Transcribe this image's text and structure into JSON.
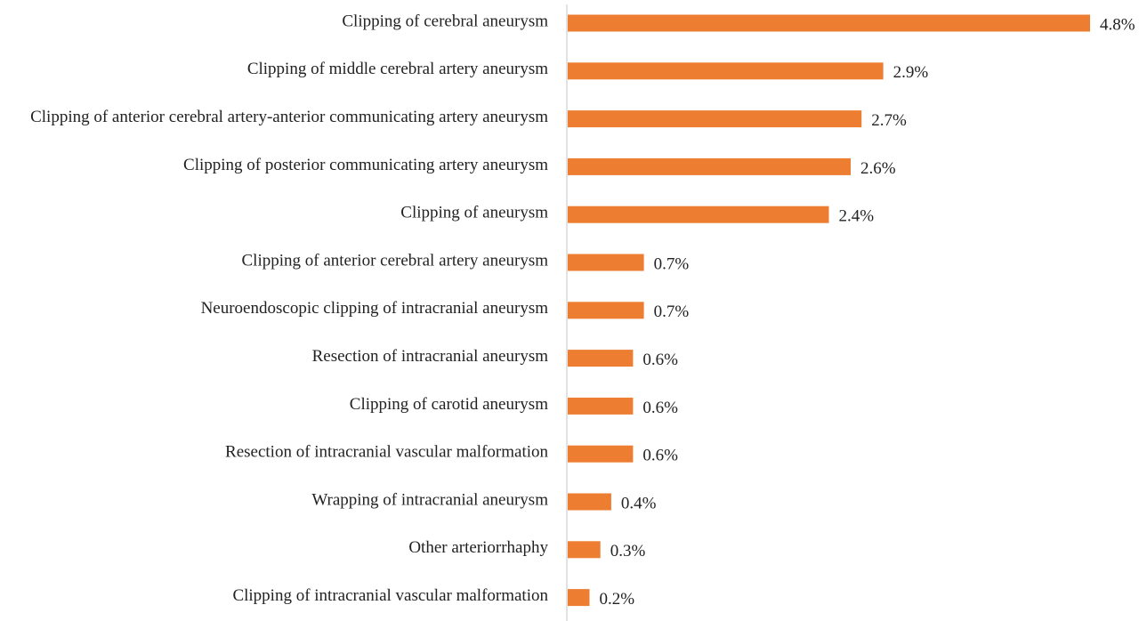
{
  "chart_data": {
    "type": "bar",
    "orientation": "horizontal",
    "categories": [
      "Clipping of cerebral aneurysm",
      "Clipping of middle cerebral artery aneurysm",
      "Clipping of anterior cerebral artery-anterior communicating artery aneurysm",
      "Clipping of posterior communicating artery aneurysm",
      "Clipping of aneurysm",
      "Clipping of anterior cerebral artery aneurysm",
      "Neuroendoscopic clipping of intracranial aneurysm",
      "Resection of intracranial aneurysm",
      "Clipping of carotid aneurysm",
      "Resection of intracranial vascular malformation",
      "Wrapping of intracranial aneurysm",
      "Other arteriorrhaphy",
      "Clipping of intracranial vascular malformation"
    ],
    "values": [
      4.8,
      2.9,
      2.7,
      2.6,
      2.4,
      0.7,
      0.7,
      0.6,
      0.6,
      0.6,
      0.4,
      0.3,
      0.2
    ],
    "value_labels": [
      "4.8%",
      "2.9%",
      "2.7%",
      "2.6%",
      "2.4%",
      "0.7%",
      "0.7%",
      "0.6%",
      "0.6%",
      "0.6%",
      "0.4%",
      "0.3%",
      "0.2%"
    ],
    "xlim": [
      0,
      4.8
    ],
    "grid": false,
    "legend": "none",
    "bar_color": "#ED7D31",
    "axis_color": "#D9D9D9"
  }
}
